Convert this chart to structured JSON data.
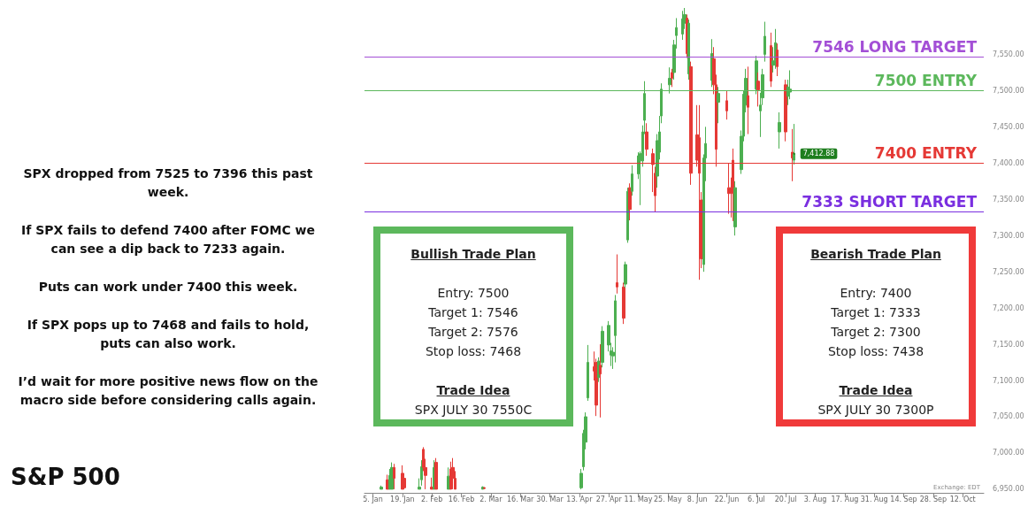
{
  "chart_data": {
    "type": "candlestick",
    "title": "S&P 500",
    "x": [
      "--01-09",
      "--01-12",
      "--01-13",
      "--01-14",
      "--01-15",
      "--01-19",
      "--01-20",
      "--01-27",
      "--01-28",
      "--01-29",
      "--01-30",
      "--02-02",
      "--02-03",
      "--02-04",
      "--02-10",
      "--02-11",
      "--02-12",
      "--02-13",
      "--02-26",
      "--02-27",
      "--04-14",
      "--04-15",
      "--04-16",
      "--04-17",
      "--04-20",
      "--04-21",
      "--04-22",
      "--04-23",
      "--04-24",
      "--04-27",
      "--04-28",
      "--04-29",
      "--04-30",
      "--05-01",
      "--05-04",
      "--05-05",
      "--05-06",
      "--05-07",
      "--05-08",
      "--05-11",
      "--05-12",
      "--05-13",
      "--05-14",
      "--05-15",
      "--05-18",
      "--05-19",
      "--05-20",
      "--05-21",
      "--05-22",
      "--05-26",
      "--05-27",
      "--05-28",
      "--05-29",
      "--06-01",
      "--06-02",
      "--06-03",
      "--06-04",
      "--06-05",
      "--06-08",
      "--06-09",
      "--06-10",
      "--06-11",
      "--06-12",
      "--06-15",
      "--06-16",
      "--06-17",
      "--06-18",
      "--06-22",
      "--06-23",
      "--06-24",
      "--06-25",
      "--06-26",
      "--06-29",
      "--06-30",
      "--07-01",
      "--07-02",
      "--07-06",
      "--07-07",
      "--07-08",
      "--07-09",
      "--07-10",
      "--07-13",
      "--07-14",
      "--07-15",
      "--07-16",
      "--07-17",
      "--07-20",
      "--07-21",
      "--07-22",
      "--07-23",
      "--07-24"
    ],
    "ohlc": [
      [
        6950,
        6955,
        6950,
        6953
      ],
      [
        6963,
        6970,
        6950,
        6950
      ],
      [
        6950,
        6978,
        6950,
        6969
      ],
      [
        6950,
        6987,
        6950,
        6980
      ],
      [
        6980,
        6985,
        6950,
        6965
      ],
      [
        6972,
        6983,
        6950,
        6950
      ],
      [
        6965,
        6968,
        6950,
        6952
      ],
      [
        6950,
        6965,
        6950,
        6953
      ],
      [
        6963,
        6990,
        6955,
        6981
      ],
      [
        7005,
        7008,
        6975,
        6980
      ],
      [
        6980,
        6992,
        6950,
        6969
      ],
      [
        6953,
        6966,
        6950,
        6950
      ],
      [
        6950,
        6990,
        6950,
        6980
      ],
      [
        6987,
        6993,
        6950,
        6950
      ],
      [
        6950,
        6980,
        6950,
        6968
      ],
      [
        6978,
        6988,
        6950,
        6950
      ],
      [
        6980,
        6993,
        6950,
        6965
      ],
      [
        6965,
        6975,
        6950,
        6950
      ],
      [
        6950,
        6954,
        6950,
        6953
      ],
      [
        6952,
        6953,
        6950,
        6951
      ],
      [
        6952,
        6978,
        6950,
        6972
      ],
      [
        6981,
        7032,
        6976,
        7027
      ],
      [
        7015,
        7056,
        7005,
        7050
      ],
      [
        7076,
        7149,
        7072,
        7125
      ],
      [
        7119,
        7140,
        7100,
        7113
      ],
      [
        7125,
        7130,
        7051,
        7066
      ],
      [
        7104,
        7132,
        7098,
        7127
      ],
      [
        7121,
        7150,
        7049,
        7109
      ],
      [
        7125,
        7175,
        7118,
        7168
      ],
      [
        7149,
        7182,
        7140,
        7176
      ],
      [
        7135,
        7152,
        7120,
        7141
      ],
      [
        7134,
        7146,
        7116,
        7139
      ],
      [
        7162,
        7218,
        7125,
        7210
      ],
      [
        7235,
        7274,
        7220,
        7229
      ],
      [
        7229,
        7235,
        7178,
        7186
      ],
      [
        7233,
        7264,
        7228,
        7260
      ],
      [
        7294,
        7366,
        7290,
        7361
      ],
      [
        7366,
        7372,
        7321,
        7336
      ],
      [
        7361,
        7397,
        7355,
        7385
      ],
      [
        7385,
        7415,
        7378,
        7410
      ],
      [
        7403,
        7416,
        7342,
        7413
      ],
      [
        7403,
        7452,
        7395,
        7443
      ],
      [
        7459,
        7513,
        7440,
        7496
      ],
      [
        7443,
        7455,
        7410,
        7419
      ],
      [
        7413,
        7420,
        7360,
        7398
      ],
      [
        7386,
        7395,
        7333,
        7355
      ],
      [
        7382,
        7440,
        7366,
        7431
      ],
      [
        7415,
        7465,
        7405,
        7443
      ],
      [
        7465,
        7510,
        7455,
        7502
      ],
      [
        7508,
        7532,
        7496,
        7517
      ],
      [
        7525,
        7530,
        7505,
        7517
      ],
      [
        7525,
        7570,
        7515,
        7563
      ],
      [
        7576,
        7600,
        7558,
        7587
      ],
      [
        7578,
        7610,
        7570,
        7599
      ],
      [
        7593,
        7614,
        7585,
        7605
      ],
      [
        7600,
        7605,
        7545,
        7551
      ],
      [
        7523,
        7598,
        7515,
        7593
      ],
      [
        7533,
        7540,
        7370,
        7386
      ],
      [
        7439,
        7480,
        7395,
        7404
      ],
      [
        7435,
        7480,
        7239,
        7386
      ],
      [
        7349,
        7360,
        7255,
        7268
      ],
      [
        7260,
        7412,
        7250,
        7407
      ],
      [
        7407,
        7450,
        7375,
        7427
      ],
      [
        7514,
        7571,
        7505,
        7551
      ],
      [
        7544,
        7560,
        7495,
        7508
      ],
      [
        7508,
        7522,
        7395,
        7419
      ],
      [
        7484,
        7505,
        7455,
        7496
      ],
      [
        7486,
        7500,
        7460,
        7472
      ],
      [
        7366,
        7400,
        7330,
        7358
      ],
      [
        7366,
        7380,
        7325,
        7360
      ],
      [
        7404,
        7420,
        7320,
        7358
      ],
      [
        7312,
        7375,
        7300,
        7366
      ],
      [
        7391,
        7445,
        7385,
        7437
      ],
      [
        7437,
        7500,
        7430,
        7495
      ],
      [
        7480,
        7530,
        7470,
        7517
      ],
      [
        7493,
        7533,
        7440,
        7477
      ],
      [
        7502,
        7548,
        7495,
        7541
      ],
      [
        7513,
        7525,
        7478,
        7501
      ],
      [
        7472,
        7497,
        7436,
        7480
      ],
      [
        7490,
        7530,
        7480,
        7522
      ],
      [
        7550,
        7595,
        7540,
        7575
      ],
      [
        7562,
        7580,
        7505,
        7513
      ],
      [
        7535,
        7560,
        7525,
        7541
      ],
      [
        7541,
        7585,
        7530,
        7566
      ],
      [
        7556,
        7565,
        7520,
        7533
      ],
      [
        7443,
        7470,
        7420,
        7456
      ],
      [
        7508,
        7515,
        7430,
        7443
      ],
      [
        7492,
        7515,
        7480,
        7505
      ],
      [
        7498,
        7528,
        7488,
        7502
      ],
      [
        7415,
        7447,
        7375,
        7407
      ],
      [
        7404,
        7454,
        7398,
        7412.88
      ]
    ],
    "colors": [
      "#4caf50",
      "#e53935",
      "#4caf50",
      "#4caf50",
      "#e53935",
      "#e53935",
      "#e53935",
      "#4caf50",
      "#4caf50",
      "#e53935",
      "#e53935",
      "#e53935",
      "#4caf50",
      "#e53935",
      "#4caf50",
      "#e53935",
      "#e53935",
      "#e53935",
      "#4caf50",
      "#e53935",
      "#4caf50",
      "#4caf50",
      "#4caf50",
      "#4caf50",
      "#e53935",
      "#e53935",
      "#4caf50",
      "#e53935",
      "#4caf50",
      "#4caf50",
      "#4caf50",
      "#4caf50",
      "#4caf50",
      "#e53935",
      "#e53935",
      "#4caf50",
      "#4caf50",
      "#e53935",
      "#4caf50",
      "#4caf50",
      "#4caf50",
      "#4caf50",
      "#4caf50",
      "#e53935",
      "#e53935",
      "#e53935",
      "#4caf50",
      "#4caf50",
      "#4caf50",
      "#4caf50",
      "#e53935",
      "#4caf50",
      "#4caf50",
      "#4caf50",
      "#4caf50",
      "#e53935",
      "#4caf50",
      "#e53935",
      "#e53935",
      "#e53935",
      "#e53935",
      "#4caf50",
      "#4caf50",
      "#4caf50",
      "#e53935",
      "#e53935",
      "#4caf50",
      "#e53935",
      "#e53935",
      "#e53935",
      "#e53935",
      "#4caf50",
      "#4caf50",
      "#4caf50",
      "#4caf50",
      "#e53935",
      "#4caf50",
      "#e53935",
      "#4caf50",
      "#4caf50",
      "#4caf50",
      "#e53935",
      "#4caf50",
      "#4caf50",
      "#e53935",
      "#4caf50",
      "#e53935",
      "#4caf50",
      "#4caf50",
      "#e53935",
      "#4caf50"
    ],
    "xlim": [
      "--01-01",
      "--10-22"
    ],
    "xticks": [
      {
        "value": "--01-05",
        "label": "5. Jan"
      },
      {
        "value": "--01-19",
        "label": "19. Jan"
      },
      {
        "value": "--02-02",
        "label": "2. Feb"
      },
      {
        "value": "--02-16",
        "label": "16. Feb"
      },
      {
        "value": "--03-02",
        "label": "2. Mar"
      },
      {
        "value": "--03-16",
        "label": "16. Mar"
      },
      {
        "value": "--03-30",
        "label": "30. Mar"
      },
      {
        "value": "--04-13",
        "label": "13. Apr"
      },
      {
        "value": "--04-27",
        "label": "27. Apr"
      },
      {
        "value": "--05-11",
        "label": "11. May"
      },
      {
        "value": "--05-25",
        "label": "25. May"
      },
      {
        "value": "--06-08",
        "label": "8. Jun"
      },
      {
        "value": "--06-22",
        "label": "22. Jun"
      },
      {
        "value": "--07-06",
        "label": "6. Jul"
      },
      {
        "value": "--07-20",
        "label": "20. Jul"
      },
      {
        "value": "--08-03",
        "label": "3. Aug"
      },
      {
        "value": "--08-17",
        "label": "17. Aug"
      },
      {
        "value": "--08-31",
        "label": "31. Aug"
      },
      {
        "value": "--09-14",
        "label": "14. Sep"
      },
      {
        "value": "--09-28",
        "label": "28. Sep"
      },
      {
        "value": "--10-12",
        "label": "12. Oct"
      }
    ],
    "ylim": [
      6945,
      7625
    ],
    "yticks": [
      {
        "value": 6950,
        "label": "6,950.00"
      },
      {
        "value": 7000,
        "label": "7,000.00"
      },
      {
        "value": 7050,
        "label": "7,050.00"
      },
      {
        "value": 7100,
        "label": "7,100.00"
      },
      {
        "value": 7150,
        "label": "7,150.00"
      },
      {
        "value": 7200,
        "label": "7,200.00"
      },
      {
        "value": 7250,
        "label": "7,250.00"
      },
      {
        "value": 7300,
        "label": "7,300.00"
      },
      {
        "value": 7350,
        "label": "7,350.00"
      },
      {
        "value": 7400,
        "label": "7,400.00"
      },
      {
        "value": 7450,
        "label": "7,450.00"
      },
      {
        "value": 7500,
        "label": "7,500.00"
      },
      {
        "value": 7550,
        "label": "7,550.00"
      }
    ],
    "ref_lines": [
      {
        "axis": "y",
        "value": 7546,
        "label": "7546 LONG TARGET",
        "color": "#a34fd6"
      },
      {
        "axis": "y",
        "value": 7500,
        "label": "7500 ENTRY",
        "color": "#5cb85c"
      },
      {
        "axis": "y",
        "value": 7400,
        "label": "7400 ENTRY",
        "color": "#e53935"
      },
      {
        "axis": "y",
        "value": 7333,
        "label": "7333 SHORT TARGET",
        "color": "#7a2fe0"
      }
    ],
    "annotations": [
      "SPX dropped from 7525 to 7396 this past week.",
      "If SPX fails to defend 7400 after FOMC we can see a dip back to 7233 again.",
      "Puts can work under 7400 this week.",
      "If SPX pops up to 7468 and fails to hold, puts can also work.",
      "I’d wait for more positive news flow on the macro side before considering calls again.",
      "Bullish Trade Plan",
      "Entry: 7500\nTarget 1: 7546\nTarget 2: 7576\nStop loss: 7468",
      "Trade Idea",
      "SPX JULY 30 7550C",
      "Bearish Trade Plan",
      "Entry: 7400\nTarget 1: 7333\nTarget 2: 7300\nStop loss: 7438",
      "Trade Idea",
      "SPX JULY 30 7300P",
      "Exchange: EDT",
      {
        "text": "7,412.88",
        "x": "--07-24",
        "y": 7412.88
      }
    ],
    "grid": false
  }
}
